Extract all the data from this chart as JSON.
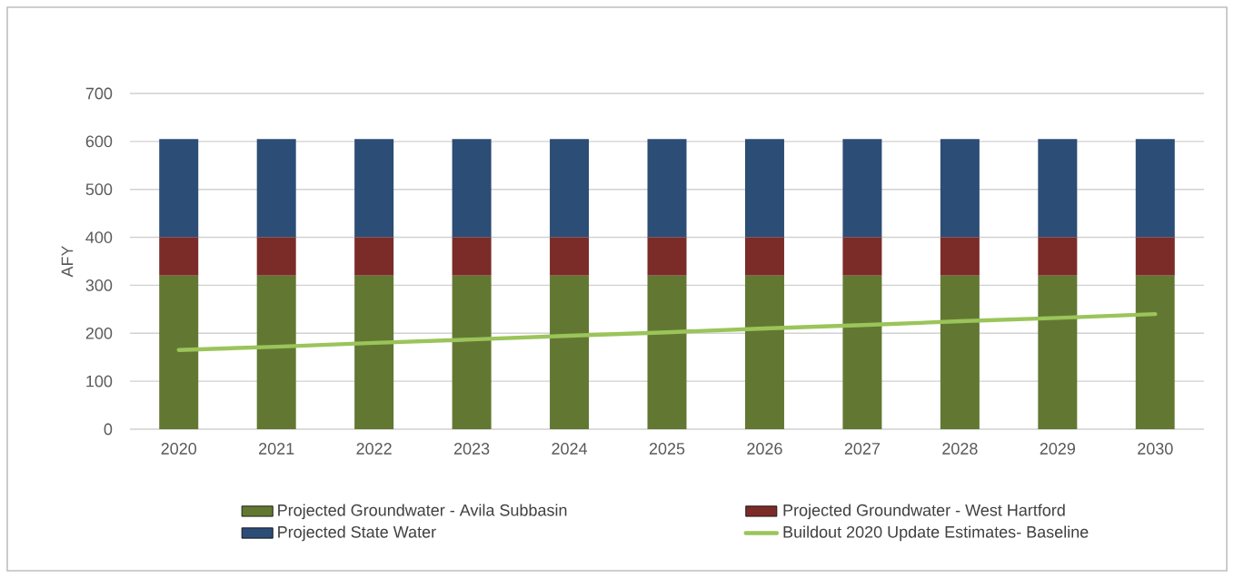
{
  "chart_data": {
    "type": "bar",
    "stacked": true,
    "ylabel": "AFY",
    "categories": [
      "2020",
      "2021",
      "2022",
      "2023",
      "2024",
      "2025",
      "2026",
      "2027",
      "2028",
      "2029",
      "2030"
    ],
    "series": [
      {
        "name": "Projected Groundwater - Avila Subbasin",
        "color": "#627832",
        "values": [
          320,
          320,
          320,
          320,
          320,
          320,
          320,
          320,
          320,
          320,
          320
        ]
      },
      {
        "name": "Projected Groundwater - West Hartford",
        "color": "#7b2c28",
        "values": [
          80,
          80,
          80,
          80,
          80,
          80,
          80,
          80,
          80,
          80,
          80
        ]
      },
      {
        "name": "Projected State Water",
        "color": "#2c4d75",
        "values": [
          205,
          205,
          205,
          205,
          205,
          205,
          205,
          205,
          205,
          205,
          205
        ]
      },
      {
        "name": "Buildout 2020 Update Estimates- Baseline",
        "type": "line",
        "color": "#9bc45a",
        "values": [
          165,
          172,
          180,
          187,
          195,
          202,
          210,
          217,
          225,
          232,
          240
        ]
      }
    ],
    "ylim": [
      0,
      700
    ],
    "yticks": [
      0,
      100,
      200,
      300,
      400,
      500,
      600,
      700
    ],
    "grid": "y",
    "legend": "bottom"
  }
}
